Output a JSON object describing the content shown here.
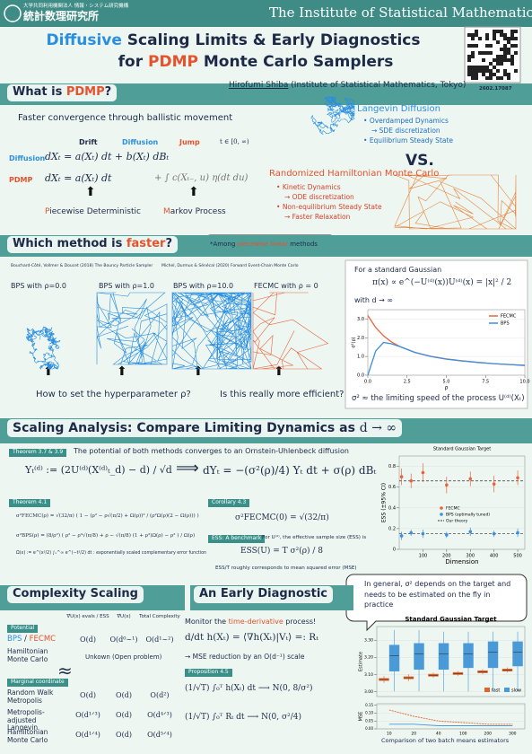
{
  "header": {
    "org_jp": "大学共同利用機関法人 情報・システム研究機構",
    "name_jp": "統計数理研究所",
    "name_en": "The Institute of Statistical Mathematics",
    "title_line1": [
      "Diffusive",
      " Scaling Limits & Early Diagnostics"
    ],
    "title_line2": [
      "for ",
      "PDMP",
      " Monte Carlo Samplers"
    ],
    "author": "Hirofumi Shiba",
    "affiliation": " (Institute of Statistical Mathematics, Tokyo)",
    "arxiv": "2602.17087"
  },
  "pdmp": {
    "heading": [
      "What is ",
      "PDMP",
      "?"
    ],
    "lead": "Faster convergence through ballistic movement",
    "terms": [
      "Drift",
      "Diffusion",
      "Jump"
    ],
    "time": "t ∈ [0, ∞)",
    "diffusion_label": "Diffusion",
    "diffusion_eq": "dXₜ = a(Xₜ) dt + b(Xₜ) dBₜ",
    "pdmp_label": "PDMP",
    "pdmp_eq": "dXₜ = a(Xₜ) dt",
    "pdmp_jump": "+ ∫ c(Xₜ₋, u) η(dt du)",
    "pd": [
      "P",
      "iecewise Deterministic"
    ],
    "mp": [
      "M",
      "arkov Process"
    ],
    "langevin": {
      "title": "Langevin Diffusion",
      "items": [
        "Overdamped Dynamics",
        "→ SDE discretization",
        "Equilibrium Steady State"
      ]
    },
    "vs": "VS.",
    "rhmc": {
      "title": "Randomized Hamiltonian Monte Carlo",
      "items": [
        "Kinetic Dynamics",
        "→ ODE discretization",
        "Non-equilibrium Steady State",
        "→ Faster Relaxation"
      ]
    }
  },
  "which": {
    "heading": [
      "Which method is ",
      "faster",
      "?"
    ],
    "note": [
      "*Among ",
      "piecewise linear",
      " methods"
    ],
    "ref_bps": "Bouchard-Côté, Vollmer & Doucet (2018) The Bouncy Particle Sampler",
    "ref_fecmc": "Michel, Durmus & Sénécal (2020) Forward Event-Chain Monte Carlo",
    "panels": [
      "BPS with ρ=0.0",
      "BPS with ρ=1.0",
      "BPS with ρ=10.0",
      "FECMC with ρ = 0"
    ],
    "q1": "How to set the hyperparameter ρ?",
    "q2": "Is this really more efficient?",
    "gauss_intro": "For a standard Gaussian",
    "gauss_eq": "π(x) ∝ e^(−U⁽ᵈ⁾(x))",
    "potential_eq": "U⁽ᵈ⁾(x) = |x|² / 2",
    "limit": "with  d → ∞",
    "speed_note": "σ² ≈ the limiting speed of the process U⁽ᵈ⁾(Xₜ)"
  },
  "scaling": {
    "heading": [
      "Scaling Analysis:  Compare Limiting Dynamics as ",
      "d → ∞"
    ],
    "thm37": "Theorem 3.7 & 3.9",
    "thm37_text": "The potential of both methods converges to an Ornstein-Uhlenbeck diffusion",
    "y_def": "Yₜ⁽ᵈ⁾ := (2U⁽ᵈ⁾(X⁽ᵈ⁾ₜ_d) − d) / √d",
    "implies": "⟹",
    "ou": "dYₜ = −(σ²(ρ)/4) Yₜ dt + σ(ρ) dBₜ",
    "thm41": "Theorem 4.1",
    "fecmc_formula": "σ²FECMC(ρ) = √(32/π) ( 1 − (ρ² − ρ√(π/2) + Ω(ρ))² / (ρ²Ω(ρ)(2 − Ω(ρ))) )",
    "bps_formula": "σ²BPS(ρ) = (8/ρ²) ( ρ² − ρ³√(π/8) + ρ − √(π/8) (1 + ρ²)Ω(ρ) − ρ² ) / Ω(ρ)",
    "omega_note": "Ω(x) := e^(x²/2) ∫ₓ^∞ e^(−t²/2) dt : exponentially scaled complementary error function",
    "cor": "Corollary 4.3",
    "cor_eq": "σ²FECMC(0) = √(32/π)",
    "ess_tag": "ESS: A benchmark",
    "ess_text": "For U⁽ᵈ⁾, the effective sample size (ESS) is",
    "ess_eq": "ESS(U) = T σ²(ρ) / 8",
    "ess_note": "ESS/T  roughly corresponds to mean squared error (MSE)",
    "bubble": "In general, σ² depends on the target and needs to be estimated on the fly in practice"
  },
  "complexity": {
    "heading": "Complexity Scaling",
    "columns": [
      "∇U(x) evals / ESS",
      "∇U(x)",
      "Total Complexity"
    ],
    "potential_tag": "Potential",
    "bps_fecmc": {
      "name": [
        "BPS",
        " / ",
        "FECMC"
      ],
      "cells": [
        "O(d)",
        "O(d⁰∼¹)",
        "O(d¹∼²)"
      ]
    },
    "hmc_potential": {
      "name": "Hamiltonian Monte Carlo",
      "cell": "Unkown (Open problem)"
    },
    "approx": "≈",
    "marginal_tag": "Marginal coordinate",
    "marginal": [
      {
        "name": "Random Walk Metropolis",
        "cells": [
          "O(d)",
          "O(d)",
          "O(d²)"
        ]
      },
      {
        "name": "Metropolis-adjusted Langevin",
        "cells": [
          "O(d¹ᐟ³)",
          "O(d)",
          "O(d⁴ᐟ³)"
        ]
      },
      {
        "name": "Hamiltonian Monte Carlo",
        "cells": [
          "O(d¹ᐟ⁴)",
          "O(d)",
          "O(d⁵ᐟ⁴)"
        ]
      }
    ]
  },
  "diagnostic": {
    "heading": "An Early Diagnostic",
    "monitor": [
      "Monitor the ",
      "time-derivative",
      " process!"
    ],
    "deriv_eq": "d/dt h(Xₜ) = ⟨∇h(Xₜ)|Vₜ⟩ =: Rₜ",
    "mse": "→ MSE reduction by an O(d⁻¹) scale",
    "prop": "Proposition 4.5",
    "clt1": "(1/√T) ∫₀ᵀ h(Xₜ) dt  ⟶  N(0, 8/σ²)",
    "clt2": "(1/√T) ∫₀ᵀ Rₜ dt  ⟶  N(0, σ²/4)",
    "caption": "Comparison of two batch means estimators"
  },
  "chart_data": [
    {
      "type": "line",
      "xlabel": "ρ",
      "ylabel": "σ²(ρ)",
      "x": [
        0,
        0.5,
        1,
        1.5,
        2,
        3,
        4,
        5,
        6,
        7,
        8,
        9,
        10
      ],
      "series": [
        {
          "name": "FECMC",
          "color": "#e8643c",
          "values": [
            3.19,
            2.55,
            2.1,
            1.78,
            1.55,
            1.22,
            1.01,
            0.87,
            0.77,
            0.69,
            0.62,
            0.57,
            0.53
          ]
        },
        {
          "name": "BPS",
          "color": "#3b8ee0",
          "values": [
            0,
            1.3,
            1.75,
            1.68,
            1.54,
            1.22,
            1.0,
            0.86,
            0.76,
            0.68,
            0.62,
            0.57,
            0.52
          ]
        }
      ],
      "xlim": [
        0,
        10
      ],
      "xticks": [
        {
          "value": 0,
          "label": "0.0"
        },
        {
          "value": 2.5,
          "label": "2.5"
        },
        {
          "value": 5,
          "label": "5.0"
        },
        {
          "value": 7.5,
          "label": "7.5"
        },
        {
          "value": 10,
          "label": "10.0"
        }
      ],
      "ylim": [
        0,
        3.5
      ],
      "yticks": [
        {
          "value": 0,
          "label": "0.0"
        },
        {
          "value": 1,
          "label": "1.0"
        },
        {
          "value": 2,
          "label": "2.0"
        },
        {
          "value": 3,
          "label": "3.0"
        }
      ]
    },
    {
      "type": "errorbar",
      "title": "Standard Gaussian Target",
      "xlabel": "Dimension",
      "ylabel": "ESS (±95% CI)",
      "x": [
        10,
        50,
        100,
        200,
        300,
        400,
        500
      ],
      "series": [
        {
          "name": "FECMC",
          "color": "#e8643c",
          "values": [
            0.7,
            0.66,
            0.74,
            0.62,
            0.68,
            0.63,
            0.69
          ],
          "errors": [
            0.08,
            0.07,
            0.09,
            0.08,
            0.07,
            0.08,
            0.07
          ]
        },
        {
          "name": "BPS (optimally tuned)",
          "color": "#3b8ee0",
          "values": [
            0.13,
            0.16,
            0.15,
            0.14,
            0.17,
            0.15,
            0.16
          ],
          "errors": [
            0.04,
            0.03,
            0.04,
            0.03,
            0.04,
            0.03,
            0.04
          ]
        }
      ],
      "theory": {
        "name": "Our theory",
        "color": "#333333",
        "values": [
          0.66,
          0.15
        ]
      },
      "xlim": [
        0,
        530
      ],
      "xticks": [
        100,
        200,
        300,
        400,
        500
      ],
      "ylim": [
        0,
        0.9
      ],
      "yticks": [
        0,
        0.2,
        0.4,
        0.6,
        0.8
      ]
    },
    {
      "type": "box",
      "title": "Standard Gaussian Target",
      "ylabel": "Estimate",
      "categories": [
        "10",
        "20",
        "40",
        "100",
        "200",
        "300"
      ],
      "ylim": [
        2.97,
        3.38
      ],
      "yticks": [
        {
          "value": 3.0,
          "label": "3.00"
        },
        {
          "value": 3.1,
          "label": "3.10"
        },
        {
          "value": 3.2,
          "label": "3.20"
        },
        {
          "value": 3.3,
          "label": "3.30"
        }
      ],
      "series": [
        {
          "name": "fast",
          "color": "#e0652a",
          "low": [
            3.05,
            3.06,
            3.08,
            3.09,
            3.1,
            3.11
          ],
          "q1": [
            3.065,
            3.075,
            3.09,
            3.1,
            3.11,
            3.12
          ],
          "median": [
            3.07,
            3.08,
            3.095,
            3.105,
            3.115,
            3.125
          ],
          "q3": [
            3.075,
            3.085,
            3.1,
            3.11,
            3.12,
            3.13
          ],
          "high": [
            3.09,
            3.1,
            3.11,
            3.12,
            3.13,
            3.14
          ]
        },
        {
          "name": "slow",
          "color": "#4a9ad8",
          "low": [
            3.0,
            3.0,
            3.0,
            3.0,
            3.0,
            3.0
          ],
          "q1": [
            3.12,
            3.13,
            3.13,
            3.14,
            3.14,
            3.15
          ],
          "median": [
            3.21,
            3.22,
            3.22,
            3.22,
            3.23,
            3.23
          ],
          "q3": [
            3.27,
            3.28,
            3.28,
            3.28,
            3.29,
            3.29
          ],
          "high": [
            3.36,
            3.36,
            3.35,
            3.35,
            3.35,
            3.35
          ]
        }
      ],
      "mse": {
        "ylabel": "MSE",
        "ylim": [
          0,
          0.16
        ],
        "yticks": [
          {
            "value": 0,
            "label": "0.00"
          },
          {
            "value": 0.05,
            "label": "0.05"
          },
          {
            "value": 0.1,
            "label": "0.10"
          },
          {
            "value": 0.15,
            "label": "0.15"
          }
        ],
        "series": [
          {
            "color": "#e0652a",
            "values": [
              0.12,
              0.08,
              0.05,
              0.04,
              0.03,
              0.03
            ]
          },
          {
            "color": "#4a9ad8",
            "values": [
              0.03,
              0.03,
              0.02,
              0.02,
              0.02,
              0.02
            ]
          }
        ]
      }
    }
  ]
}
